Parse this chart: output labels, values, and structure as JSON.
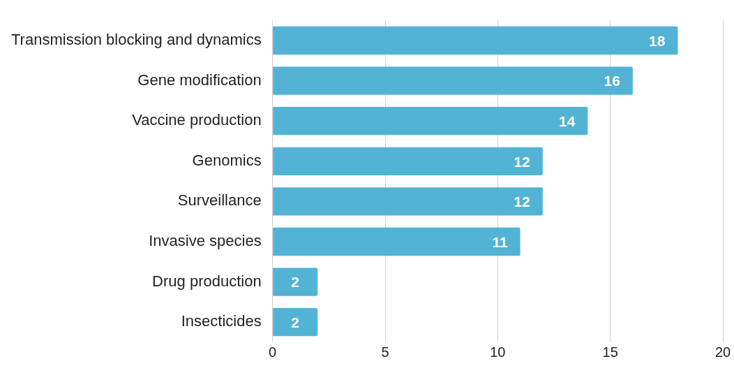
{
  "chart_data": {
    "type": "bar",
    "orientation": "horizontal",
    "categories": [
      "Transmission blocking and dynamics",
      "Gene modification",
      "Vaccine production",
      "Genomics",
      "Surveillance",
      "Invasive species",
      "Drug production",
      "Insecticides"
    ],
    "values": [
      18,
      16,
      14,
      12,
      12,
      11,
      2,
      2
    ],
    "color": "#53b3d5",
    "xlim": [
      0,
      20
    ],
    "xticks": [
      0,
      5,
      10,
      15,
      20
    ],
    "grid": "x",
    "legend": false,
    "data_labels": true
  }
}
